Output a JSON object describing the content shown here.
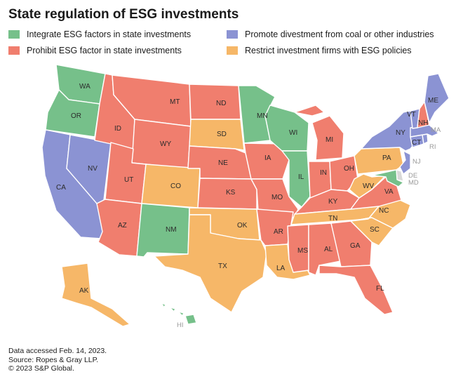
{
  "title": "State regulation of ESG investments",
  "colors": {
    "integrate": "#76c08a",
    "prohibit": "#f07e6e",
    "divest": "#8b93d3",
    "restrict": "#f6b768",
    "none": "#d9d9d9"
  },
  "legend": [
    {
      "key": "integrate",
      "label": "Integrate ESG factors in state investments"
    },
    {
      "key": "prohibit",
      "label": "Prohibit ESG factor in state investments"
    },
    {
      "key": "divest",
      "label": "Promote divestment from coal or other industries"
    },
    {
      "key": "restrict",
      "label": "Restrict investment firms with ESG policies"
    }
  ],
  "states": [
    {
      "abbr": "WA",
      "category": "integrate"
    },
    {
      "abbr": "OR",
      "category": "integrate"
    },
    {
      "abbr": "CA",
      "category": "divest"
    },
    {
      "abbr": "NV",
      "category": "divest"
    },
    {
      "abbr": "ID",
      "category": "prohibit"
    },
    {
      "abbr": "MT",
      "category": "prohibit"
    },
    {
      "abbr": "WY",
      "category": "prohibit"
    },
    {
      "abbr": "UT",
      "category": "prohibit"
    },
    {
      "abbr": "AZ",
      "category": "prohibit"
    },
    {
      "abbr": "CO",
      "category": "restrict"
    },
    {
      "abbr": "NM",
      "category": "integrate"
    },
    {
      "abbr": "ND",
      "category": "prohibit"
    },
    {
      "abbr": "SD",
      "category": "restrict"
    },
    {
      "abbr": "NE",
      "category": "prohibit"
    },
    {
      "abbr": "KS",
      "category": "prohibit"
    },
    {
      "abbr": "OK",
      "category": "restrict"
    },
    {
      "abbr": "TX",
      "category": "restrict"
    },
    {
      "abbr": "MN",
      "category": "integrate"
    },
    {
      "abbr": "IA",
      "category": "prohibit"
    },
    {
      "abbr": "MO",
      "category": "prohibit"
    },
    {
      "abbr": "AR",
      "category": "prohibit"
    },
    {
      "abbr": "LA",
      "category": "restrict"
    },
    {
      "abbr": "WI",
      "category": "integrate"
    },
    {
      "abbr": "IL",
      "category": "integrate"
    },
    {
      "abbr": "MI",
      "category": "prohibit"
    },
    {
      "abbr": "IN",
      "category": "prohibit"
    },
    {
      "abbr": "OH",
      "category": "prohibit"
    },
    {
      "abbr": "KY",
      "category": "prohibit"
    },
    {
      "abbr": "TN",
      "category": "restrict"
    },
    {
      "abbr": "MS",
      "category": "prohibit"
    },
    {
      "abbr": "AL",
      "category": "prohibit"
    },
    {
      "abbr": "GA",
      "category": "prohibit"
    },
    {
      "abbr": "FL",
      "category": "prohibit"
    },
    {
      "abbr": "SC",
      "category": "restrict"
    },
    {
      "abbr": "NC",
      "category": "restrict"
    },
    {
      "abbr": "VA",
      "category": "prohibit"
    },
    {
      "abbr": "WV",
      "category": "restrict"
    },
    {
      "abbr": "PA",
      "category": "restrict"
    },
    {
      "abbr": "NY",
      "category": "divest"
    },
    {
      "abbr": "NJ",
      "category": "divest"
    },
    {
      "abbr": "DE",
      "category": "none"
    },
    {
      "abbr": "MD",
      "category": "integrate"
    },
    {
      "abbr": "CT",
      "category": "divest"
    },
    {
      "abbr": "RI",
      "category": "divest"
    },
    {
      "abbr": "MA",
      "category": "divest"
    },
    {
      "abbr": "VT",
      "category": "divest"
    },
    {
      "abbr": "NH",
      "category": "prohibit"
    },
    {
      "abbr": "ME",
      "category": "divest"
    },
    {
      "abbr": "AK",
      "category": "restrict"
    },
    {
      "abbr": "HI",
      "category": "integrate"
    }
  ],
  "footer": [
    "Data accessed Feb. 14, 2023.",
    "Source: Ropes & Gray LLP.",
    "© 2023 S&P Global."
  ]
}
